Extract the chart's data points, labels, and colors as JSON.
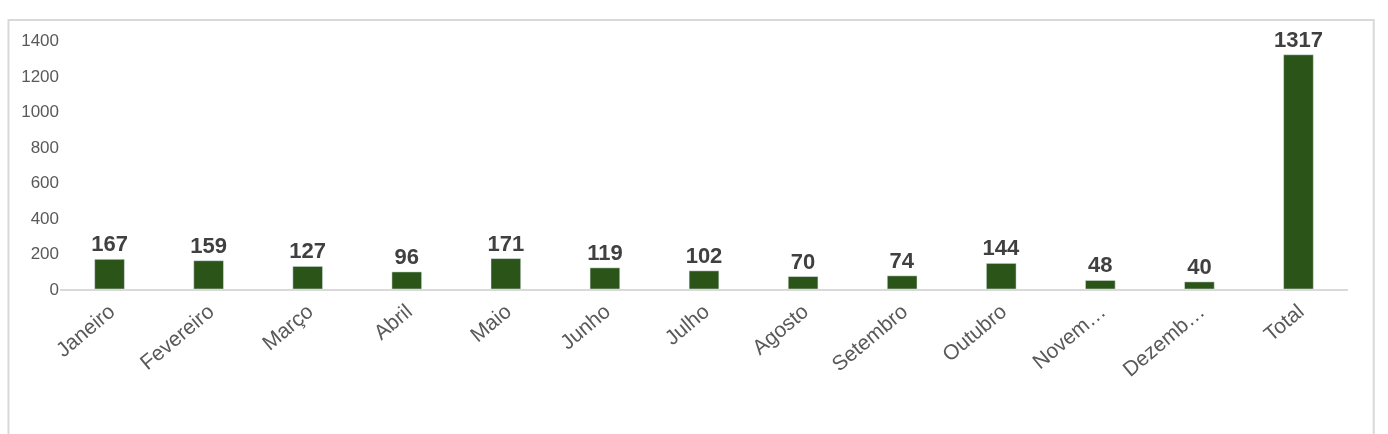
{
  "chart_data": {
    "type": "bar",
    "categories": [
      "Janeiro",
      "Fevereiro",
      "Março",
      "Abril",
      "Maio",
      "Junho",
      "Julho",
      "Agosto",
      "Setembro",
      "Outubro",
      "Novem…",
      "Dezemb…",
      "Total"
    ],
    "values": [
      167,
      159,
      127,
      96,
      171,
      119,
      102,
      70,
      74,
      144,
      48,
      40,
      1317
    ],
    "color": "#2b5418",
    "ylim": [
      0,
      1400
    ],
    "yticks": [
      0,
      200,
      400,
      600,
      800,
      1000,
      1200,
      1400
    ],
    "data_labels": true
  }
}
